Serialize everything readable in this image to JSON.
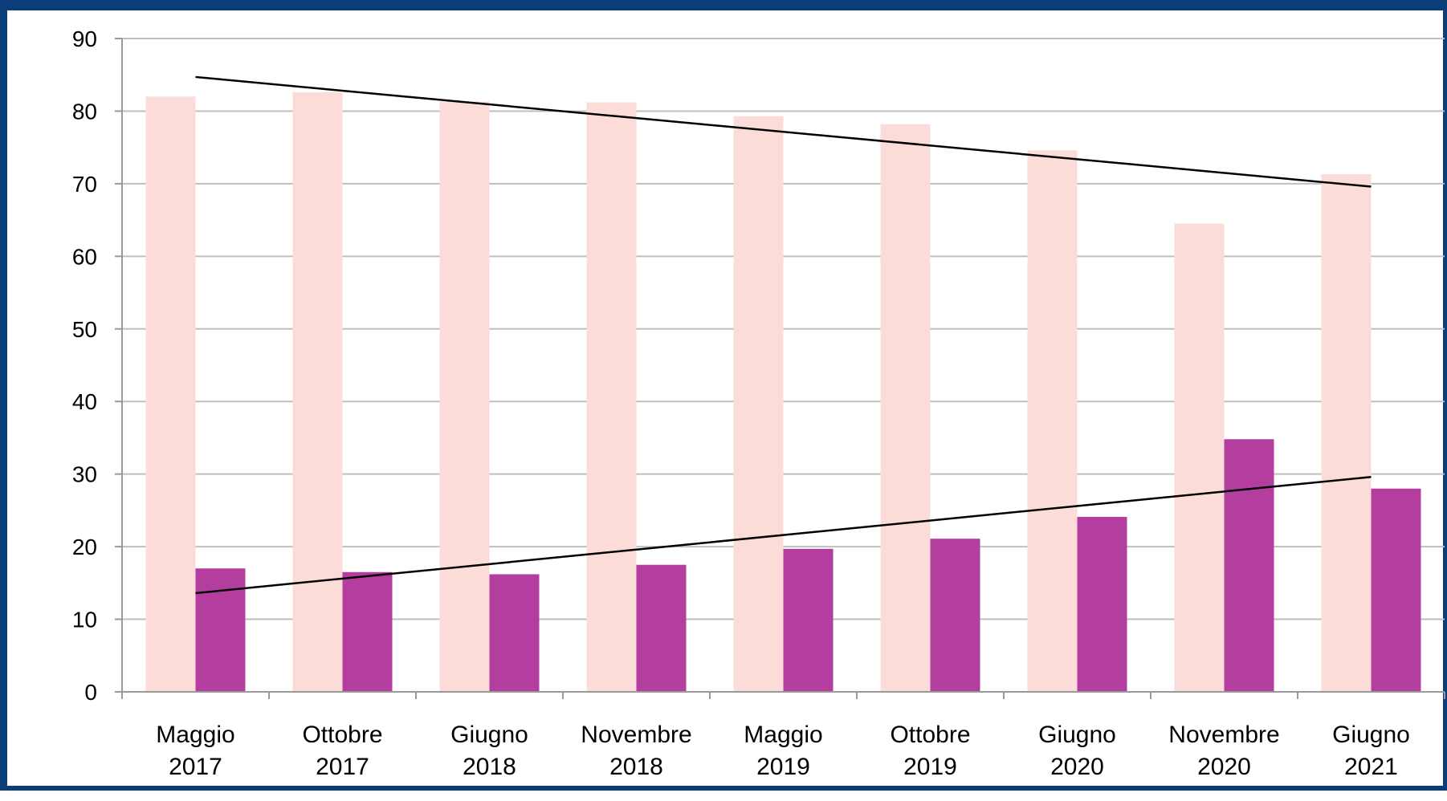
{
  "colors": {
    "frame": "#0b3d7a",
    "grid": "#bfbfbf",
    "axis": "#999999",
    "series_light": "#fbdcd8",
    "series_dark": "#b43ea0",
    "trendline": "#000000"
  },
  "chart_data": {
    "type": "bar",
    "title": "",
    "xlabel": "",
    "ylabel": "",
    "ylim": [
      0,
      90
    ],
    "yticks": [
      0,
      10,
      20,
      30,
      40,
      50,
      60,
      70,
      80,
      90
    ],
    "grid": true,
    "legend": "none",
    "categories": [
      [
        "Maggio",
        "2017"
      ],
      [
        "Ottobre",
        "2017"
      ],
      [
        "Giugno",
        "2018"
      ],
      [
        "Novembre",
        "2018"
      ],
      [
        "Maggio",
        "2019"
      ],
      [
        "Ottobre",
        "2019"
      ],
      [
        "Giugno",
        "2020"
      ],
      [
        "Novembre",
        "2020"
      ],
      [
        "Giugno",
        "2021"
      ]
    ],
    "series": [
      {
        "values": [
          82.0,
          82.6,
          81.3,
          81.2,
          79.3,
          78.2,
          74.6,
          64.5,
          71.3
        ]
      },
      {
        "values": [
          17.0,
          16.5,
          16.2,
          17.5,
          19.7,
          21.1,
          24.1,
          34.8,
          28.0
        ]
      }
    ],
    "trendlines": [
      {
        "series": 0,
        "start": 84.7,
        "end": 69.6
      },
      {
        "series": 1,
        "start": 13.6,
        "end": 29.6
      }
    ]
  }
}
